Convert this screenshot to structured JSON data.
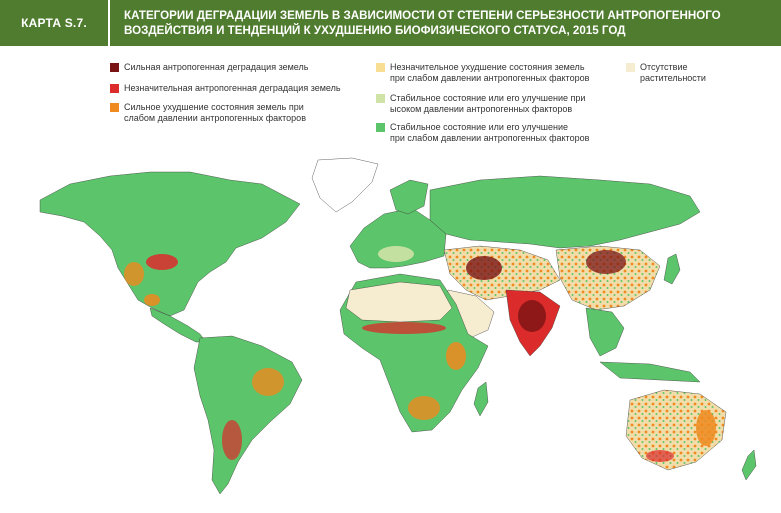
{
  "header": {
    "tag": "КАРТА S.7.",
    "title_line1": "КАТЕГОРИИ ДЕГРАДАЦИИ ЗЕМЕЛЬ В ЗАВИСИМОСТИ ОТ СТЕПЕНИ СЕРЬЕЗНОСТИ АНТРОПОГЕННОГО",
    "title_line2": "ВОЗДЕЙСТВИЯ И ТЕНДЕНЦИЙ К УХУДШЕНИЮ БИОФИЗИЧЕСКОГО СТАТУСА, 2015 ГОД",
    "bg_color": "#4f7c2f"
  },
  "legend": [
    {
      "line1": "Сильная антропогенная деградация земель",
      "line2": "",
      "color": "#7a1414"
    },
    {
      "line1": "Незначительная антропогенная деградация земель",
      "line2": "",
      "color": "#dc2b2b"
    },
    {
      "line1": "Сильное ухудшение состояния земель при",
      "line2": "слабом давлении антропогенных факторов",
      "color": "#ef8a1e"
    },
    {
      "line1": "Незначительное ухудшение состояния земель",
      "line2": "при слабом давлении антропогенных факторов",
      "color": "#f7de92"
    },
    {
      "line1": "Стабильное состояние или его улучшение при",
      "line2": "ысоком давлении антропогенных факторов",
      "color": "#cfe3a6"
    },
    {
      "line1": "Стабильное состояние или его улучшение",
      "line2": "при слабом давлении антропогенных факторов",
      "color": "#5cc46a"
    },
    {
      "line1": "Отсутствие",
      "line2": "растительности",
      "color": "#f6ecd0"
    }
  ],
  "map_colors": {
    "ocean": "#ffffff",
    "border": "#3a3a3a"
  }
}
